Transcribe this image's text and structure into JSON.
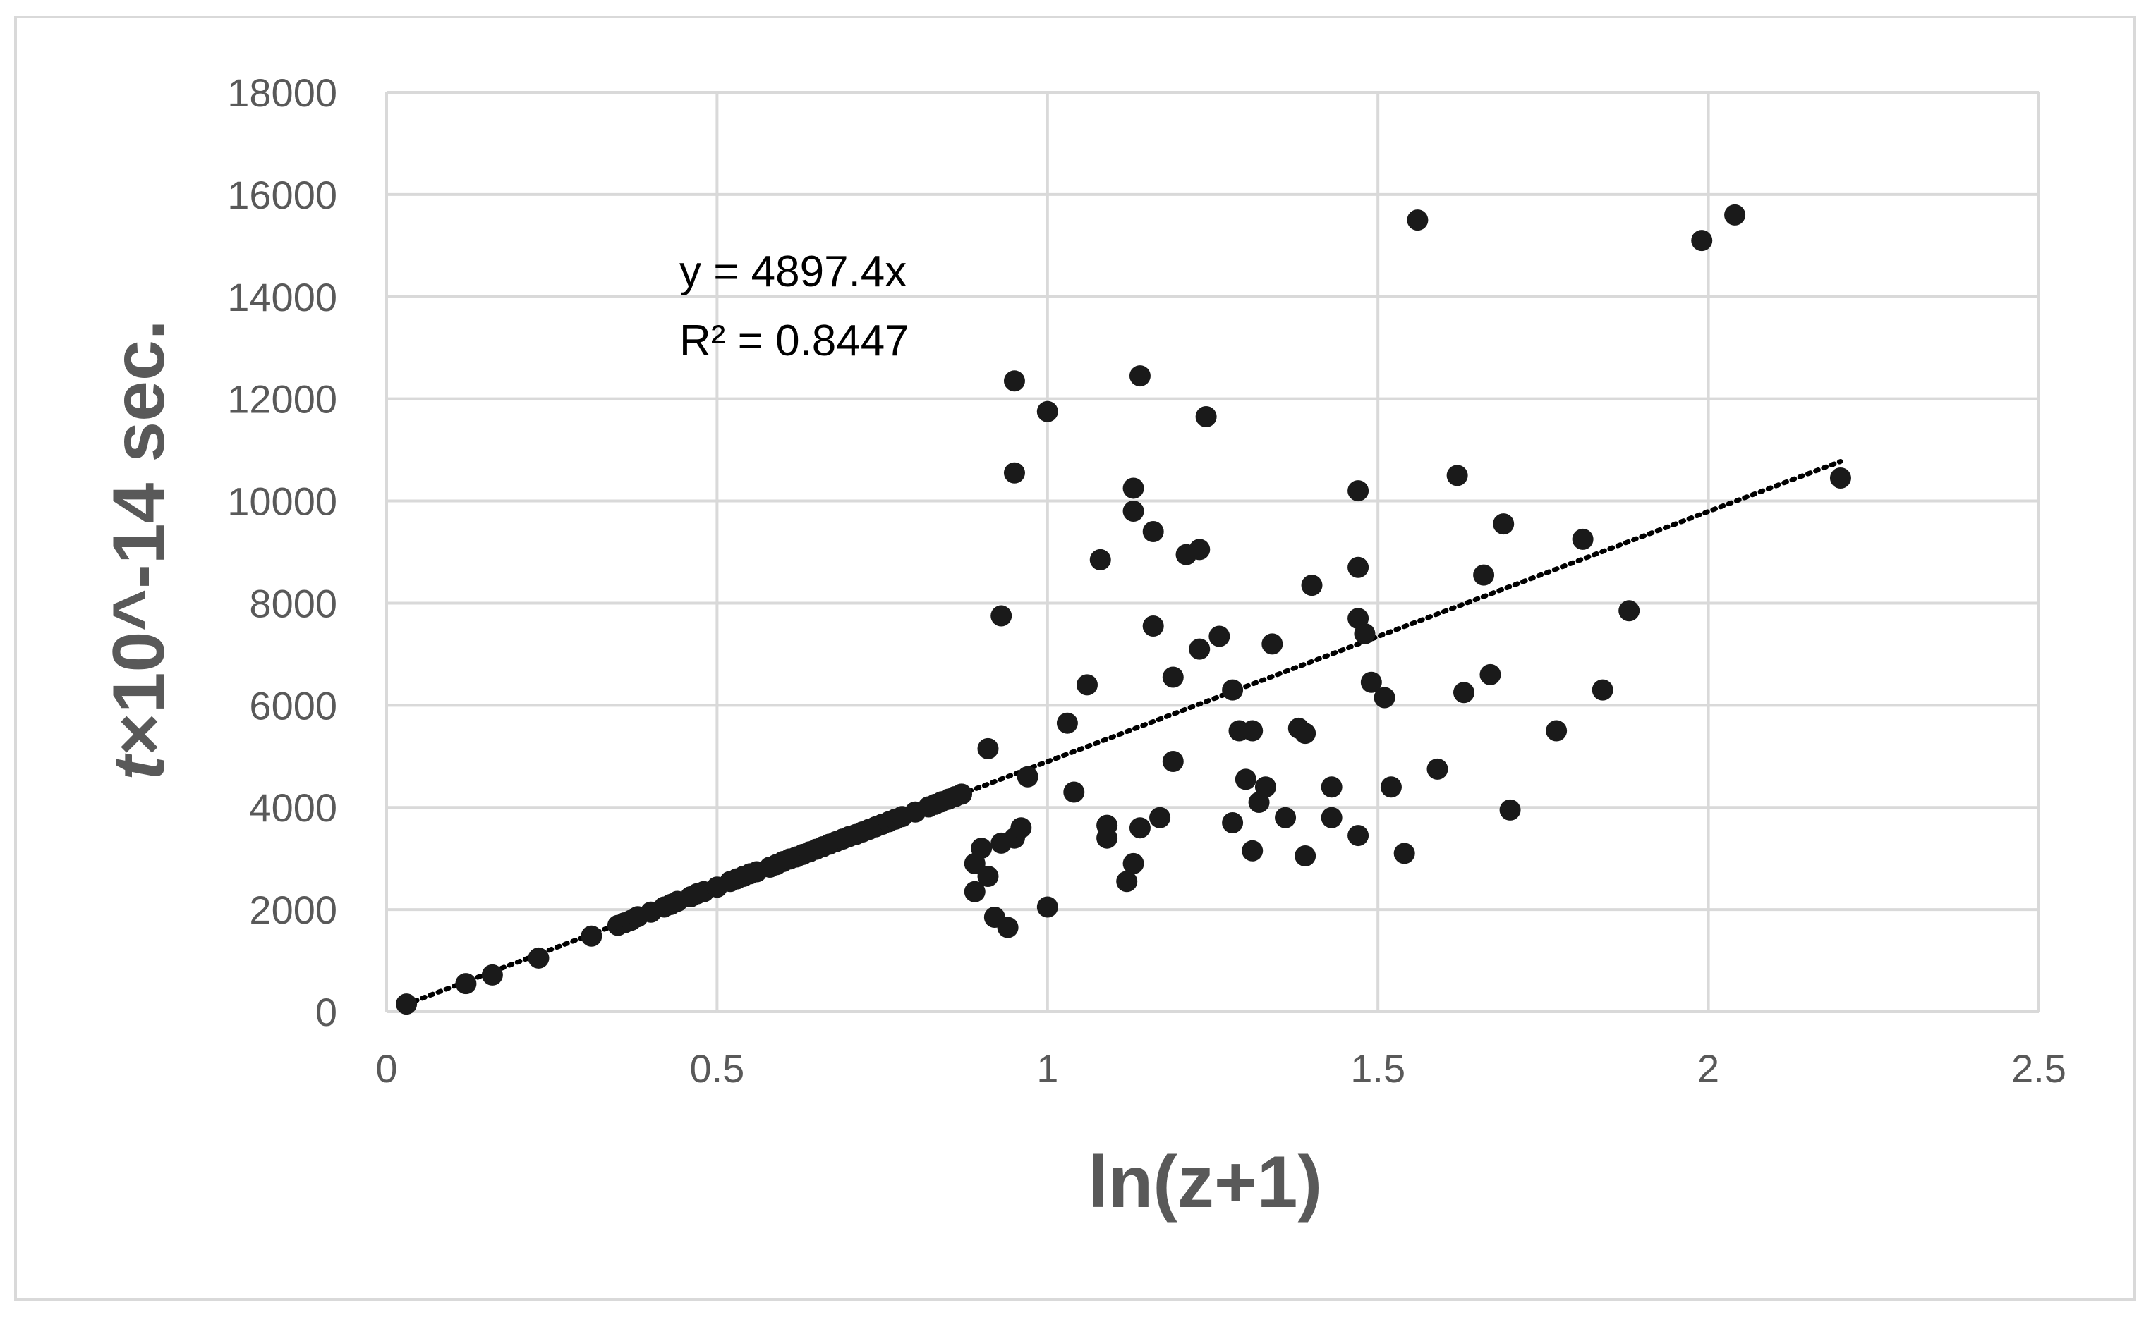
{
  "chart_data": {
    "type": "scatter",
    "title": "",
    "xlabel": "ln(z+1)",
    "ylabel": "t×10^-14 sec.",
    "ylabel_italic_part": "t",
    "ylabel_rest": "×10^-14 sec.",
    "xlim": [
      0,
      2.5
    ],
    "ylim": [
      0,
      18000
    ],
    "x_ticks": [
      "0",
      "0.5",
      "1",
      "1.5",
      "2",
      "2.5"
    ],
    "y_ticks": [
      "0",
      "2000",
      "4000",
      "6000",
      "8000",
      "10000",
      "12000",
      "14000",
      "16000",
      "18000"
    ],
    "grid": true,
    "legend": "none",
    "marker_color": "#1a1a1a",
    "trendline": {
      "type": "linear-through-origin",
      "slope": 4897.4,
      "x_range": [
        0.03,
        2.2
      ],
      "equation": "y = 4897.4x",
      "r_squared_label": "R² = 0.8447",
      "style": "dotted",
      "color": "#000000"
    },
    "series": [
      {
        "points": [
          [
            0.03,
            150
          ],
          [
            0.12,
            550
          ],
          [
            0.16,
            720
          ],
          [
            0.23,
            1050
          ],
          [
            0.31,
            1480
          ],
          [
            0.35,
            1690
          ],
          [
            0.36,
            1740
          ],
          [
            0.37,
            1790
          ],
          [
            0.38,
            1860
          ],
          [
            0.4,
            1950
          ],
          [
            0.42,
            2050
          ],
          [
            0.43,
            2100
          ],
          [
            0.44,
            2160
          ],
          [
            0.46,
            2250
          ],
          [
            0.47,
            2310
          ],
          [
            0.48,
            2350
          ],
          [
            0.5,
            2440
          ],
          [
            0.52,
            2550
          ],
          [
            0.53,
            2600
          ],
          [
            0.54,
            2650
          ],
          [
            0.55,
            2700
          ],
          [
            0.56,
            2740
          ],
          [
            0.58,
            2830
          ],
          [
            0.59,
            2880
          ],
          [
            0.6,
            2940
          ],
          [
            0.61,
            2990
          ],
          [
            0.62,
            3030
          ],
          [
            0.63,
            3080
          ],
          [
            0.64,
            3130
          ],
          [
            0.65,
            3180
          ],
          [
            0.66,
            3230
          ],
          [
            0.67,
            3280
          ],
          [
            0.68,
            3330
          ],
          [
            0.69,
            3380
          ],
          [
            0.7,
            3430
          ],
          [
            0.71,
            3470
          ],
          [
            0.72,
            3520
          ],
          [
            0.73,
            3570
          ],
          [
            0.74,
            3620
          ],
          [
            0.75,
            3670
          ],
          [
            0.76,
            3720
          ],
          [
            0.77,
            3770
          ],
          [
            0.78,
            3820
          ],
          [
            0.8,
            3910
          ],
          [
            0.82,
            4010
          ],
          [
            0.83,
            4060
          ],
          [
            0.84,
            4110
          ],
          [
            0.85,
            4160
          ],
          [
            0.86,
            4210
          ],
          [
            0.87,
            4260
          ],
          [
            0.89,
            2350
          ],
          [
            0.89,
            2900
          ],
          [
            0.9,
            3200
          ],
          [
            0.91,
            2650
          ],
          [
            0.91,
            5150
          ],
          [
            0.92,
            1850
          ],
          [
            0.93,
            7750
          ],
          [
            0.93,
            3300
          ],
          [
            0.94,
            1650
          ],
          [
            0.95,
            12350
          ],
          [
            0.95,
            10550
          ],
          [
            0.95,
            3400
          ],
          [
            0.96,
            3600
          ],
          [
            0.97,
            4600
          ],
          [
            1.0,
            11750
          ],
          [
            1.0,
            2050
          ],
          [
            1.03,
            5650
          ],
          [
            1.04,
            4300
          ],
          [
            1.06,
            6400
          ],
          [
            1.08,
            8850
          ],
          [
            1.09,
            3650
          ],
          [
            1.09,
            3400
          ],
          [
            1.12,
            2550
          ],
          [
            1.13,
            10250
          ],
          [
            1.13,
            9800
          ],
          [
            1.13,
            2900
          ],
          [
            1.14,
            3600
          ],
          [
            1.14,
            12450
          ],
          [
            1.16,
            9400
          ],
          [
            1.16,
            7550
          ],
          [
            1.17,
            3800
          ],
          [
            1.19,
            6550
          ],
          [
            1.19,
            4900
          ],
          [
            1.21,
            8950
          ],
          [
            1.23,
            9050
          ],
          [
            1.23,
            7100
          ],
          [
            1.24,
            11650
          ],
          [
            1.26,
            7350
          ],
          [
            1.28,
            6300
          ],
          [
            1.28,
            3700
          ],
          [
            1.29,
            5500
          ],
          [
            1.3,
            4550
          ],
          [
            1.31,
            5500
          ],
          [
            1.31,
            3150
          ],
          [
            1.32,
            4100
          ],
          [
            1.33,
            4400
          ],
          [
            1.34,
            7200
          ],
          [
            1.36,
            3800
          ],
          [
            1.38,
            5550
          ],
          [
            1.39,
            5450
          ],
          [
            1.39,
            3050
          ],
          [
            1.4,
            8350
          ],
          [
            1.43,
            4400
          ],
          [
            1.43,
            3800
          ],
          [
            1.47,
            10200
          ],
          [
            1.47,
            7700
          ],
          [
            1.47,
            8700
          ],
          [
            1.47,
            3450
          ],
          [
            1.48,
            7400
          ],
          [
            1.49,
            6450
          ],
          [
            1.51,
            6150
          ],
          [
            1.52,
            4400
          ],
          [
            1.54,
            3100
          ],
          [
            1.56,
            15500
          ],
          [
            1.59,
            4750
          ],
          [
            1.62,
            10500
          ],
          [
            1.63,
            6250
          ],
          [
            1.66,
            8550
          ],
          [
            1.67,
            6600
          ],
          [
            1.69,
            9550
          ],
          [
            1.7,
            3950
          ],
          [
            1.77,
            5500
          ],
          [
            1.81,
            9250
          ],
          [
            1.84,
            6300
          ],
          [
            1.88,
            7850
          ],
          [
            1.99,
            15100
          ],
          [
            2.04,
            15600
          ],
          [
            2.2,
            10450
          ]
        ]
      }
    ]
  }
}
